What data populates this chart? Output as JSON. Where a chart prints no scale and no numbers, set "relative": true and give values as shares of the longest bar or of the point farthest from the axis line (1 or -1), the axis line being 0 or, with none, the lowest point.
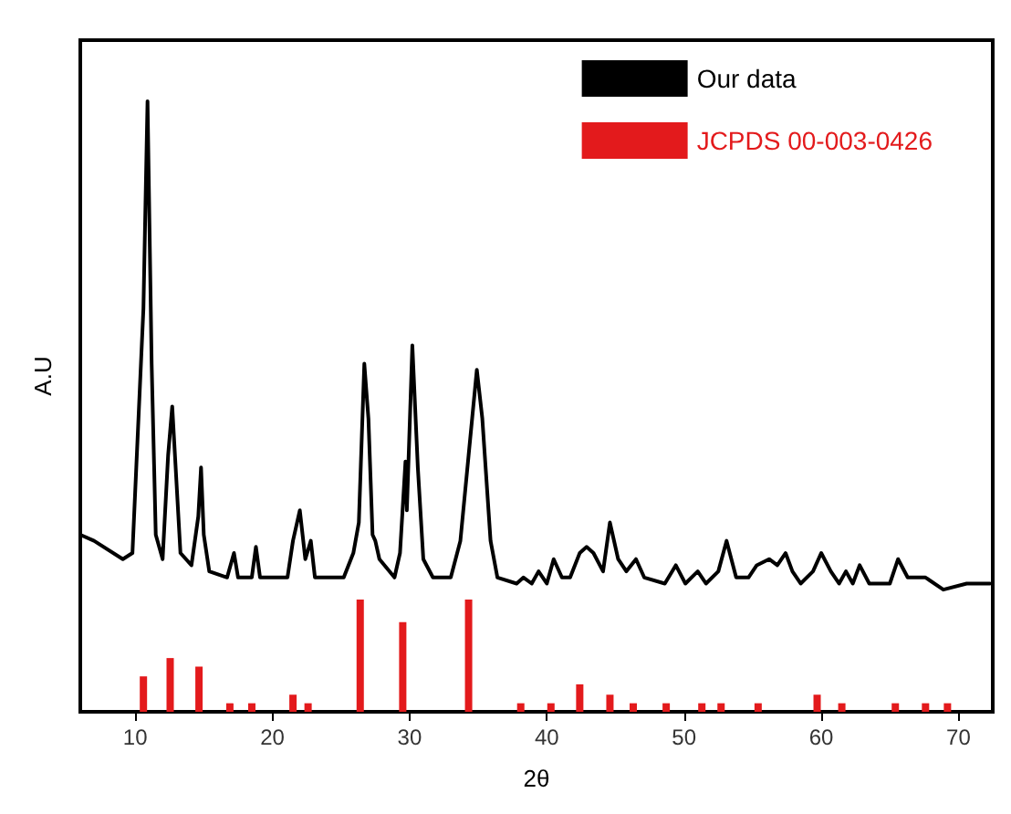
{
  "chart_data": {
    "type": "line",
    "xlabel": "2θ",
    "ylabel": "A.U",
    "relative": true,
    "xlim": [
      6,
      72.5
    ],
    "xticks": [
      10,
      20,
      30,
      40,
      50,
      60,
      70
    ],
    "tick_labels": "x",
    "grid": false,
    "legend": "top right",
    "marker": "none",
    "line_style": "solid",
    "series": [
      {
        "name": "Our data",
        "color": "#000000",
        "x": [
          6.0,
          7.0,
          9.1,
          9.8,
          10.6,
          10.9,
          11.2,
          11.5,
          12.0,
          12.4,
          12.7,
          13.0,
          13.3,
          14.1,
          14.6,
          14.8,
          15.0,
          15.4,
          16.7,
          17.2,
          17.5,
          18.5,
          18.8,
          19.1,
          21.1,
          21.5,
          22.0,
          22.4,
          22.8,
          23.1,
          25.2,
          25.9,
          26.3,
          26.7,
          27.0,
          27.3,
          27.5,
          27.8,
          28.9,
          29.3,
          29.7,
          29.8,
          30.2,
          30.6,
          31.0,
          31.7,
          33.0,
          33.7,
          34.3,
          34.9,
          35.3,
          35.9,
          36.4,
          37.8,
          38.3,
          38.9,
          39.4,
          40.0,
          40.5,
          41.1,
          41.7,
          42.4,
          42.9,
          43.4,
          44.1,
          44.6,
          45.2,
          45.8,
          46.5,
          47.1,
          48.6,
          49.4,
          50.1,
          51.0,
          51.6,
          52.5,
          53.1,
          53.8,
          54.7,
          55.3,
          56.2,
          56.8,
          57.4,
          57.9,
          58.5,
          59.4,
          60.0,
          60.7,
          61.3,
          61.8,
          62.3,
          62.8,
          63.5,
          65.0,
          65.6,
          66.3,
          67.6,
          68.9,
          70.6,
          72.3
        ],
        "values": [
          0.29,
          0.28,
          0.25,
          0.26,
          0.66,
          1.0,
          0.57,
          0.29,
          0.25,
          0.42,
          0.5,
          0.38,
          0.26,
          0.24,
          0.32,
          0.4,
          0.29,
          0.23,
          0.22,
          0.26,
          0.22,
          0.22,
          0.27,
          0.22,
          0.22,
          0.28,
          0.33,
          0.25,
          0.28,
          0.22,
          0.22,
          0.26,
          0.31,
          0.57,
          0.48,
          0.29,
          0.28,
          0.25,
          0.22,
          0.26,
          0.41,
          0.33,
          0.6,
          0.4,
          0.25,
          0.22,
          0.22,
          0.28,
          0.42,
          0.56,
          0.48,
          0.28,
          0.22,
          0.21,
          0.22,
          0.21,
          0.23,
          0.21,
          0.25,
          0.22,
          0.22,
          0.26,
          0.27,
          0.26,
          0.23,
          0.31,
          0.25,
          0.23,
          0.25,
          0.22,
          0.21,
          0.24,
          0.21,
          0.23,
          0.21,
          0.23,
          0.28,
          0.22,
          0.22,
          0.24,
          0.25,
          0.24,
          0.26,
          0.23,
          0.21,
          0.23,
          0.26,
          0.23,
          0.21,
          0.23,
          0.21,
          0.24,
          0.21,
          0.21,
          0.25,
          0.22,
          0.22,
          0.2,
          0.21,
          0.21
        ]
      },
      {
        "name": "JCPDS 00-003-0426",
        "type": "bar",
        "color": "#e31a1c",
        "x": [
          10.6,
          12.55,
          14.65,
          16.9,
          18.5,
          21.5,
          22.6,
          26.4,
          29.5,
          34.3,
          38.1,
          40.3,
          42.4,
          44.6,
          46.3,
          48.7,
          51.3,
          52.7,
          55.4,
          59.7,
          61.5,
          65.4,
          67.6,
          69.2
        ],
        "values": [
          0.058,
          0.088,
          0.074,
          0.014,
          0.014,
          0.028,
          0.014,
          0.184,
          0.147,
          0.184,
          0.014,
          0.014,
          0.045,
          0.028,
          0.014,
          0.014,
          0.014,
          0.014,
          0.014,
          0.028,
          0.014,
          0.014,
          0.014,
          0.014
        ]
      }
    ]
  }
}
